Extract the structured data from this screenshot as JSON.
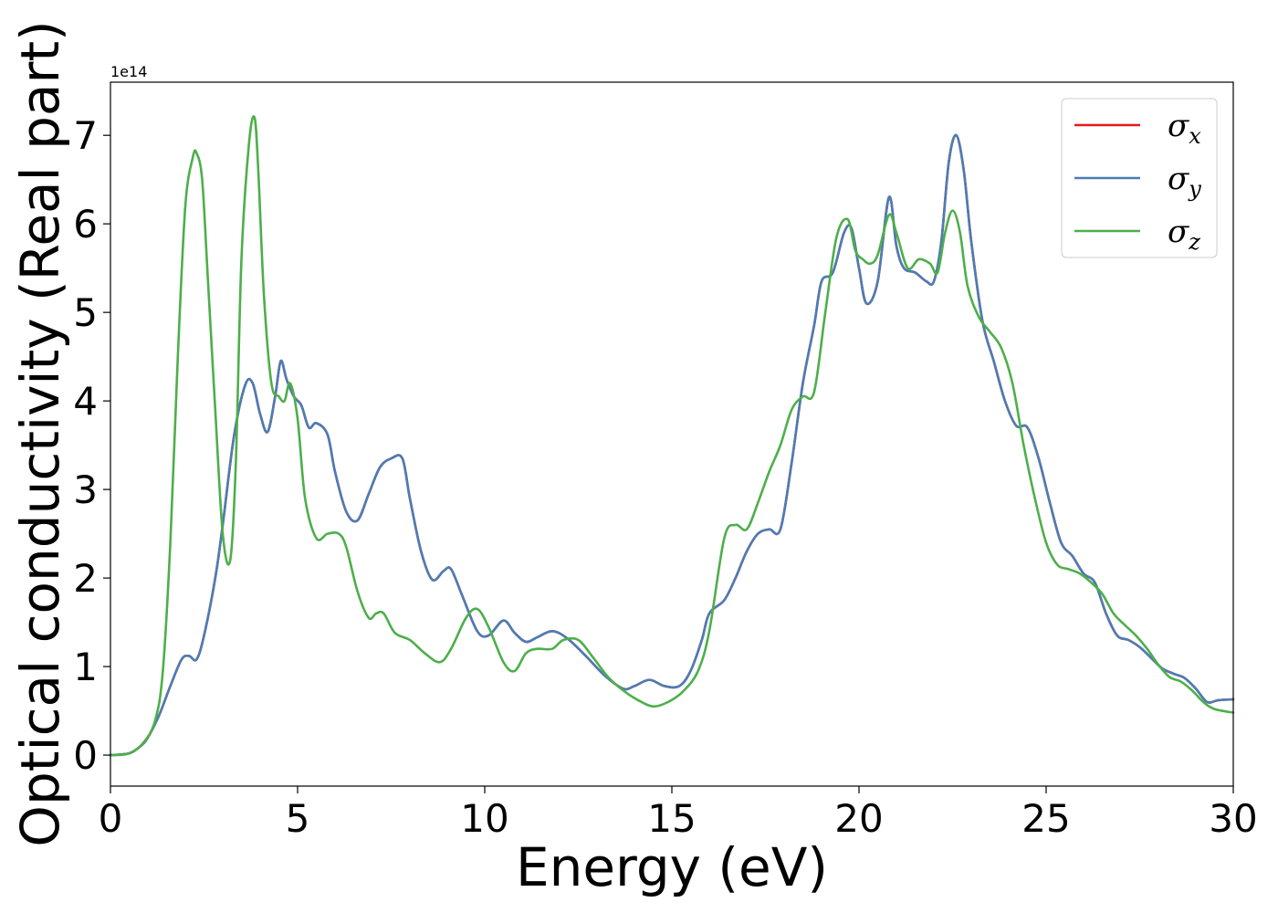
{
  "chart_data": {
    "type": "line",
    "xlabel": "Energy (eV)",
    "ylabel": "Optical conductivity (Real part)",
    "y_offset_label": "1e14",
    "xlim": [
      0,
      30
    ],
    "ylim": [
      -0.35,
      7.6
    ],
    "x_ticks": [
      0,
      5,
      10,
      15,
      20,
      25,
      30
    ],
    "y_ticks": [
      0,
      1,
      2,
      3,
      4,
      5,
      6,
      7
    ],
    "grid": false,
    "legend_position": "top-right",
    "series": [
      {
        "name": "σx",
        "legend_base": "σ",
        "legend_sub": "x",
        "color": "#e41a1c",
        "x": [
          0,
          0.5,
          0.8,
          1.0,
          1.3,
          1.6,
          1.9,
          2.1,
          2.3,
          2.5,
          2.8,
          3.0,
          3.3,
          3.6,
          3.8,
          4.0,
          4.2,
          4.4,
          4.55,
          4.7,
          4.9,
          5.1,
          5.3,
          5.5,
          5.8,
          6.0,
          6.3,
          6.6,
          6.9,
          7.2,
          7.5,
          7.8,
          8.0,
          8.3,
          8.6,
          8.9,
          9.1,
          9.4,
          9.8,
          10.1,
          10.5,
          10.8,
          11.1,
          11.4,
          11.8,
          12.2,
          12.7,
          13.2,
          13.7,
          14.0,
          14.4,
          14.8,
          15.2,
          15.5,
          15.8,
          16.0,
          16.4,
          16.7,
          17.0,
          17.3,
          17.6,
          17.9,
          18.2,
          18.5,
          18.8,
          19.0,
          19.3,
          19.6,
          19.8,
          20.0,
          20.2,
          20.5,
          20.8,
          21.0,
          21.2,
          21.5,
          21.8,
          22.0,
          22.2,
          22.4,
          22.6,
          22.8,
          23.0,
          23.3,
          23.6,
          23.9,
          24.2,
          24.5,
          24.8,
          25.1,
          25.4,
          25.7,
          26.0,
          26.3,
          26.6,
          26.9,
          27.2,
          27.5,
          27.8,
          28.1,
          28.4,
          28.7,
          29.0,
          29.3,
          29.6,
          30.0
        ],
        "y": [
          0,
          0.02,
          0.1,
          0.2,
          0.45,
          0.78,
          1.08,
          1.12,
          1.08,
          1.35,
          2.0,
          2.6,
          3.6,
          4.18,
          4.2,
          3.85,
          3.65,
          4.05,
          4.45,
          4.25,
          4.05,
          3.95,
          3.7,
          3.75,
          3.62,
          3.2,
          2.75,
          2.65,
          2.95,
          3.25,
          3.35,
          3.35,
          2.9,
          2.3,
          1.98,
          2.08,
          2.1,
          1.8,
          1.4,
          1.35,
          1.52,
          1.38,
          1.28,
          1.33,
          1.4,
          1.32,
          1.12,
          0.9,
          0.75,
          0.78,
          0.85,
          0.78,
          0.78,
          0.95,
          1.3,
          1.6,
          1.75,
          2.0,
          2.3,
          2.5,
          2.55,
          2.55,
          3.3,
          4.2,
          4.85,
          5.35,
          5.45,
          5.9,
          5.95,
          5.5,
          5.1,
          5.35,
          6.3,
          5.75,
          5.5,
          5.45,
          5.35,
          5.35,
          5.8,
          6.7,
          7.0,
          6.6,
          5.8,
          4.9,
          4.45,
          4.0,
          3.72,
          3.7,
          3.35,
          2.85,
          2.4,
          2.25,
          2.05,
          1.95,
          1.6,
          1.35,
          1.3,
          1.22,
          1.1,
          0.98,
          0.92,
          0.87,
          0.75,
          0.6,
          0.62,
          0.63
        ]
      },
      {
        "name": "σy",
        "legend_base": "σ",
        "legend_sub": "y",
        "color": "#4b7db5",
        "x": [
          0,
          0.5,
          0.8,
          1.0,
          1.3,
          1.6,
          1.9,
          2.1,
          2.3,
          2.5,
          2.8,
          3.0,
          3.3,
          3.6,
          3.8,
          4.0,
          4.2,
          4.4,
          4.55,
          4.7,
          4.9,
          5.1,
          5.3,
          5.5,
          5.8,
          6.0,
          6.3,
          6.6,
          6.9,
          7.2,
          7.5,
          7.8,
          8.0,
          8.3,
          8.6,
          8.9,
          9.1,
          9.4,
          9.8,
          10.1,
          10.5,
          10.8,
          11.1,
          11.4,
          11.8,
          12.2,
          12.7,
          13.2,
          13.7,
          14.0,
          14.4,
          14.8,
          15.2,
          15.5,
          15.8,
          16.0,
          16.4,
          16.7,
          17.0,
          17.3,
          17.6,
          17.9,
          18.2,
          18.5,
          18.8,
          19.0,
          19.3,
          19.6,
          19.8,
          20.0,
          20.2,
          20.5,
          20.8,
          21.0,
          21.2,
          21.5,
          21.8,
          22.0,
          22.2,
          22.4,
          22.6,
          22.8,
          23.0,
          23.3,
          23.6,
          23.9,
          24.2,
          24.5,
          24.8,
          25.1,
          25.4,
          25.7,
          26.0,
          26.3,
          26.6,
          26.9,
          27.2,
          27.5,
          27.8,
          28.1,
          28.4,
          28.7,
          29.0,
          29.3,
          29.6,
          30.0
        ],
        "y": [
          0,
          0.02,
          0.1,
          0.2,
          0.45,
          0.78,
          1.08,
          1.12,
          1.08,
          1.35,
          2.0,
          2.6,
          3.6,
          4.18,
          4.2,
          3.85,
          3.65,
          4.05,
          4.45,
          4.25,
          4.05,
          3.95,
          3.7,
          3.75,
          3.62,
          3.2,
          2.75,
          2.65,
          2.95,
          3.25,
          3.35,
          3.35,
          2.9,
          2.3,
          1.98,
          2.08,
          2.1,
          1.8,
          1.4,
          1.35,
          1.52,
          1.38,
          1.28,
          1.33,
          1.4,
          1.32,
          1.12,
          0.9,
          0.75,
          0.78,
          0.85,
          0.78,
          0.78,
          0.95,
          1.3,
          1.6,
          1.75,
          2.0,
          2.3,
          2.5,
          2.55,
          2.55,
          3.3,
          4.2,
          4.85,
          5.35,
          5.45,
          5.9,
          5.95,
          5.5,
          5.1,
          5.35,
          6.3,
          5.75,
          5.5,
          5.45,
          5.35,
          5.35,
          5.8,
          6.7,
          7.0,
          6.6,
          5.8,
          4.9,
          4.45,
          4.0,
          3.72,
          3.7,
          3.35,
          2.85,
          2.4,
          2.25,
          2.05,
          1.95,
          1.6,
          1.35,
          1.3,
          1.22,
          1.1,
          0.98,
          0.92,
          0.87,
          0.75,
          0.6,
          0.62,
          0.63
        ]
      },
      {
        "name": "σz",
        "legend_base": "σ",
        "legend_sub": "z",
        "color": "#4daf4a",
        "x": [
          0,
          0.5,
          0.9,
          1.2,
          1.4,
          1.6,
          1.8,
          2.0,
          2.2,
          2.3,
          2.45,
          2.6,
          2.8,
          3.0,
          3.2,
          3.35,
          3.5,
          3.7,
          3.85,
          3.95,
          4.1,
          4.3,
          4.5,
          4.65,
          4.8,
          5.0,
          5.2,
          5.5,
          5.8,
          6.1,
          6.3,
          6.6,
          6.9,
          7.1,
          7.3,
          7.6,
          8.0,
          8.4,
          8.8,
          9.1,
          9.5,
          9.8,
          10.1,
          10.5,
          10.8,
          11.1,
          11.4,
          11.8,
          12.1,
          12.5,
          12.9,
          13.3,
          13.7,
          14.1,
          14.5,
          14.9,
          15.3,
          15.7,
          16.0,
          16.4,
          16.7,
          17.0,
          17.3,
          17.6,
          17.9,
          18.2,
          18.5,
          18.8,
          19.1,
          19.4,
          19.7,
          19.9,
          20.1,
          20.3,
          20.5,
          20.8,
          21.0,
          21.3,
          21.6,
          21.9,
          22.1,
          22.3,
          22.5,
          22.7,
          22.9,
          23.2,
          23.5,
          23.8,
          24.1,
          24.4,
          24.7,
          25.0,
          25.3,
          25.6,
          25.9,
          26.2,
          26.5,
          26.8,
          27.1,
          27.4,
          27.7,
          28.0,
          28.3,
          28.6,
          28.9,
          29.2,
          29.5,
          30.0
        ],
        "y": [
          0,
          0.02,
          0.15,
          0.4,
          0.95,
          2.4,
          4.5,
          6.2,
          6.75,
          6.8,
          6.5,
          5.4,
          3.9,
          2.5,
          2.2,
          3.3,
          5.6,
          6.9,
          7.2,
          6.6,
          5.2,
          4.2,
          4.05,
          4.0,
          4.2,
          3.8,
          2.9,
          2.45,
          2.5,
          2.5,
          2.35,
          1.85,
          1.55,
          1.6,
          1.6,
          1.38,
          1.3,
          1.15,
          1.05,
          1.2,
          1.55,
          1.65,
          1.45,
          1.05,
          0.95,
          1.15,
          1.2,
          1.2,
          1.3,
          1.3,
          1.1,
          0.88,
          0.73,
          0.62,
          0.55,
          0.6,
          0.72,
          0.95,
          1.4,
          2.45,
          2.6,
          2.55,
          2.85,
          3.2,
          3.5,
          3.9,
          4.05,
          4.1,
          5.0,
          5.85,
          6.05,
          5.7,
          5.6,
          5.55,
          5.65,
          6.1,
          5.9,
          5.5,
          5.6,
          5.55,
          5.45,
          5.9,
          6.15,
          5.9,
          5.3,
          4.95,
          4.78,
          4.6,
          4.2,
          3.5,
          2.9,
          2.4,
          2.15,
          2.1,
          2.05,
          1.95,
          1.82,
          1.6,
          1.47,
          1.35,
          1.2,
          1.02,
          0.88,
          0.83,
          0.73,
          0.6,
          0.52,
          0.48
        ]
      }
    ]
  }
}
